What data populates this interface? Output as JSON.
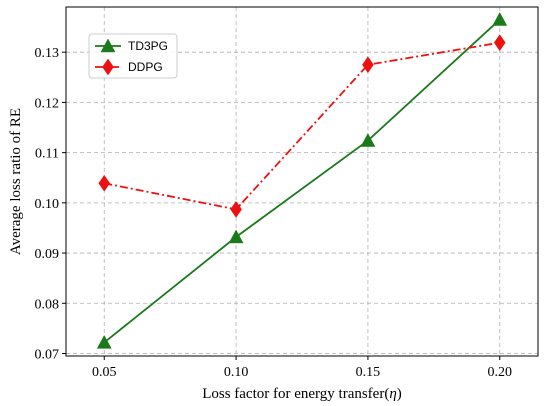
{
  "chart_data": {
    "type": "line",
    "x": [
      0.05,
      0.1,
      0.15,
      0.2
    ],
    "x_tick_labels": [
      "0.05",
      "0.10",
      "0.15",
      "0.20"
    ],
    "y_ticks": [
      0.07,
      0.08,
      0.09,
      0.1,
      0.11,
      0.12,
      0.13
    ],
    "y_tick_labels": [
      "0.07",
      "0.08",
      "0.09",
      "0.10",
      "0.11",
      "0.12",
      "0.13"
    ],
    "xlim": [
      0.0355,
      0.2145
    ],
    "ylim": [
      0.0695,
      0.139
    ],
    "xlabel_prefix": "Loss factor for energy transfer(",
    "xlabel_symbol": "η",
    "xlabel_suffix": ")",
    "ylabel": "Average loss ratio of RE",
    "grid": true,
    "legend_position": "top-left",
    "series": [
      {
        "name": "TD3PG",
        "values": [
          0.0722,
          0.0932,
          0.1124,
          0.1365
        ],
        "color": "#1a7a1a",
        "marker": "triangle",
        "line_style": "solid"
      },
      {
        "name": "DDPG",
        "values": [
          0.1039,
          0.0987,
          0.1275,
          0.1319
        ],
        "color": "#ee1111",
        "marker": "diamond",
        "line_style": "dash-dot"
      }
    ]
  }
}
